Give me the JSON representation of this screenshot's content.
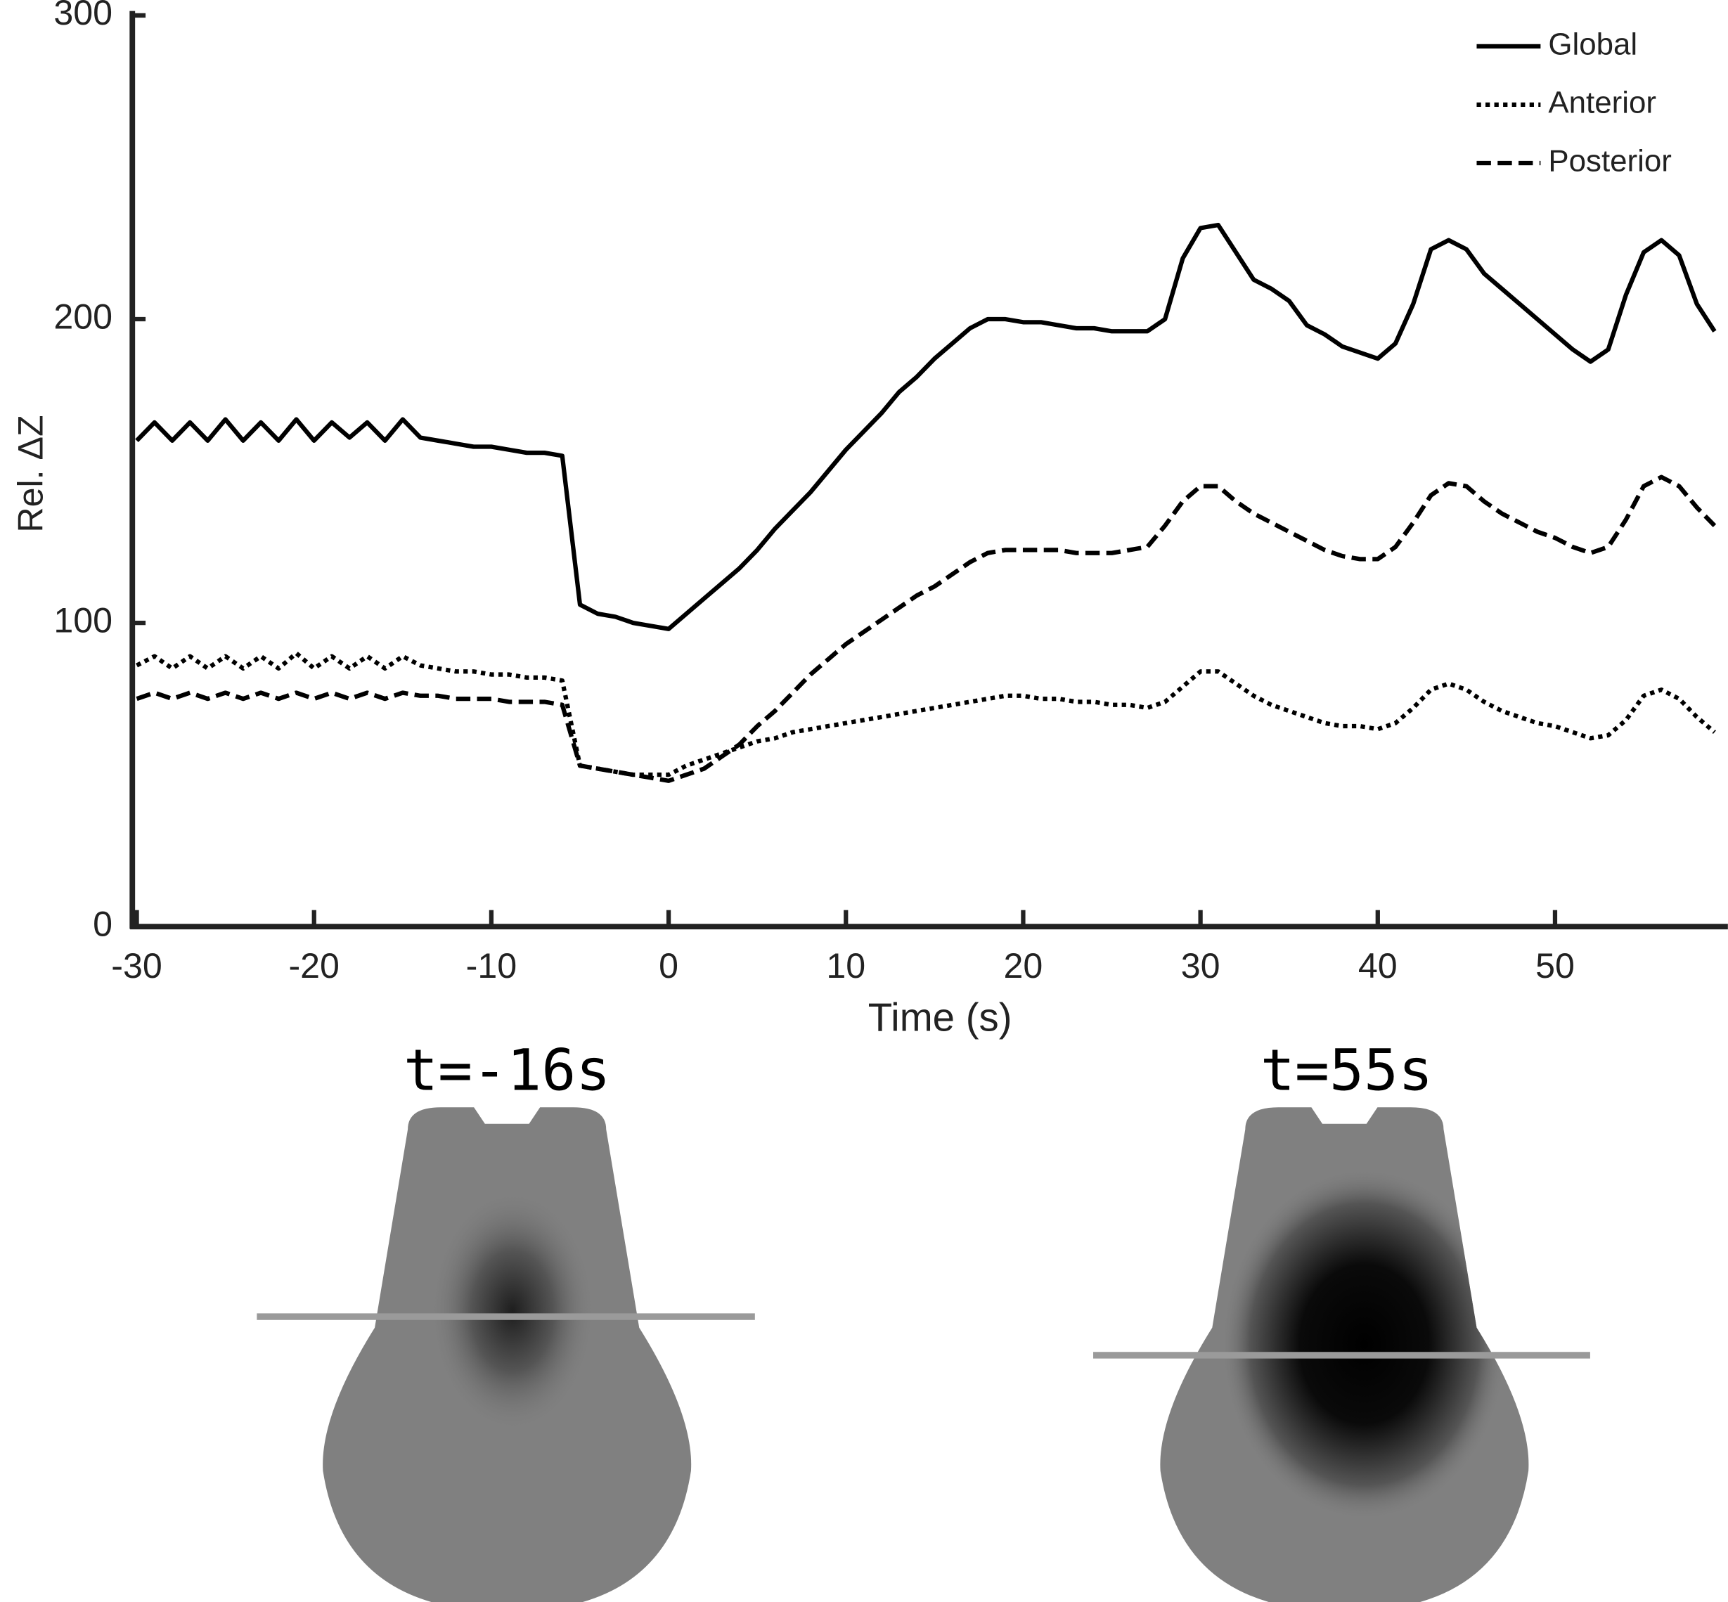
{
  "chart_data": {
    "type": "line",
    "xlabel": "Time (s)",
    "ylabel": "Rel. ΔZ",
    "x": [
      -30,
      -29,
      -28,
      -27,
      -26,
      -25,
      -24,
      -23,
      -22,
      -21,
      -20,
      -19,
      -18,
      -17,
      -16,
      -15,
      -14,
      -13,
      -12,
      -11,
      -10,
      -9,
      -8,
      -7,
      -6,
      -5,
      -4,
      -3,
      -2,
      -1,
      0,
      1,
      2,
      3,
      4,
      5,
      6,
      7,
      8,
      9,
      10,
      11,
      12,
      13,
      14,
      15,
      16,
      17,
      18,
      19,
      20,
      21,
      22,
      23,
      24,
      25,
      26,
      27,
      28,
      29,
      30,
      31,
      32,
      33,
      34,
      35,
      36,
      37,
      38,
      39,
      40,
      41,
      42,
      43,
      44,
      45,
      46,
      47,
      48,
      49,
      50,
      51,
      52,
      53,
      54,
      55,
      56,
      57,
      58,
      59
    ],
    "series": [
      {
        "name": "Global",
        "color": "#000000",
        "dash": "solid",
        "values": [
          160,
          166,
          160,
          166,
          160,
          167,
          160,
          166,
          160,
          167,
          160,
          166,
          161,
          166,
          160,
          167,
          161,
          160,
          159,
          158,
          158,
          157,
          156,
          156,
          155,
          106,
          103,
          102,
          100,
          99,
          98,
          103,
          108,
          113,
          118,
          124,
          131,
          137,
          143,
          150,
          157,
          163,
          169,
          176,
          181,
          187,
          192,
          197,
          200,
          200,
          199,
          199,
          198,
          197,
          197,
          196,
          196,
          196,
          200,
          220,
          230,
          231,
          222,
          213,
          210,
          206,
          198,
          195,
          191,
          189,
          187,
          192,
          205,
          223,
          226,
          223,
          215,
          210,
          205,
          200,
          195,
          190,
          186,
          190,
          208,
          222,
          226,
          221,
          205,
          196
        ]
      },
      {
        "name": "Anterior",
        "color": "#000000",
        "dash": "dotted",
        "values": [
          86,
          89,
          85,
          89,
          85,
          89,
          85,
          89,
          85,
          90,
          85,
          89,
          85,
          89,
          85,
          89,
          86,
          85,
          84,
          84,
          83,
          83,
          82,
          82,
          81,
          53,
          52,
          51,
          50,
          50,
          50,
          53,
          55,
          57,
          59,
          61,
          62,
          64,
          65,
          66,
          67,
          68,
          69,
          70,
          71,
          72,
          73,
          74,
          75,
          76,
          76,
          75,
          75,
          74,
          74,
          73,
          73,
          72,
          74,
          79,
          84,
          84,
          80,
          76,
          73,
          71,
          69,
          67,
          66,
          66,
          65,
          67,
          72,
          78,
          80,
          78,
          74,
          71,
          69,
          67,
          66,
          64,
          62,
          63,
          68,
          76,
          78,
          75,
          69,
          64
        ]
      },
      {
        "name": "Posterior",
        "color": "#000000",
        "dash": "dashed",
        "values": [
          75,
          77,
          75,
          77,
          75,
          77,
          75,
          77,
          75,
          77,
          75,
          77,
          75,
          77,
          75,
          77,
          76,
          76,
          75,
          75,
          75,
          74,
          74,
          74,
          73,
          53,
          52,
          51,
          50,
          49,
          48,
          50,
          52,
          56,
          60,
          66,
          71,
          77,
          83,
          88,
          93,
          97,
          101,
          105,
          109,
          112,
          116,
          120,
          123,
          124,
          124,
          124,
          124,
          123,
          123,
          123,
          124,
          125,
          132,
          140,
          145,
          145,
          140,
          136,
          133,
          130,
          127,
          124,
          122,
          121,
          121,
          125,
          133,
          142,
          146,
          145,
          140,
          136,
          133,
          130,
          128,
          125,
          123,
          125,
          134,
          145,
          148,
          145,
          138,
          132
        ]
      }
    ],
    "xlim": [
      -30.25,
      59.75
    ],
    "xticks": [
      -30,
      -20,
      -10,
      0,
      10,
      20,
      30,
      40,
      50
    ],
    "ylim": [
      0,
      300
    ],
    "yticks": [
      0,
      100,
      200,
      300
    ],
    "legend": "upper right"
  },
  "images": [
    {
      "title": "t=-16s"
    },
    {
      "title": "t=55s"
    }
  ]
}
